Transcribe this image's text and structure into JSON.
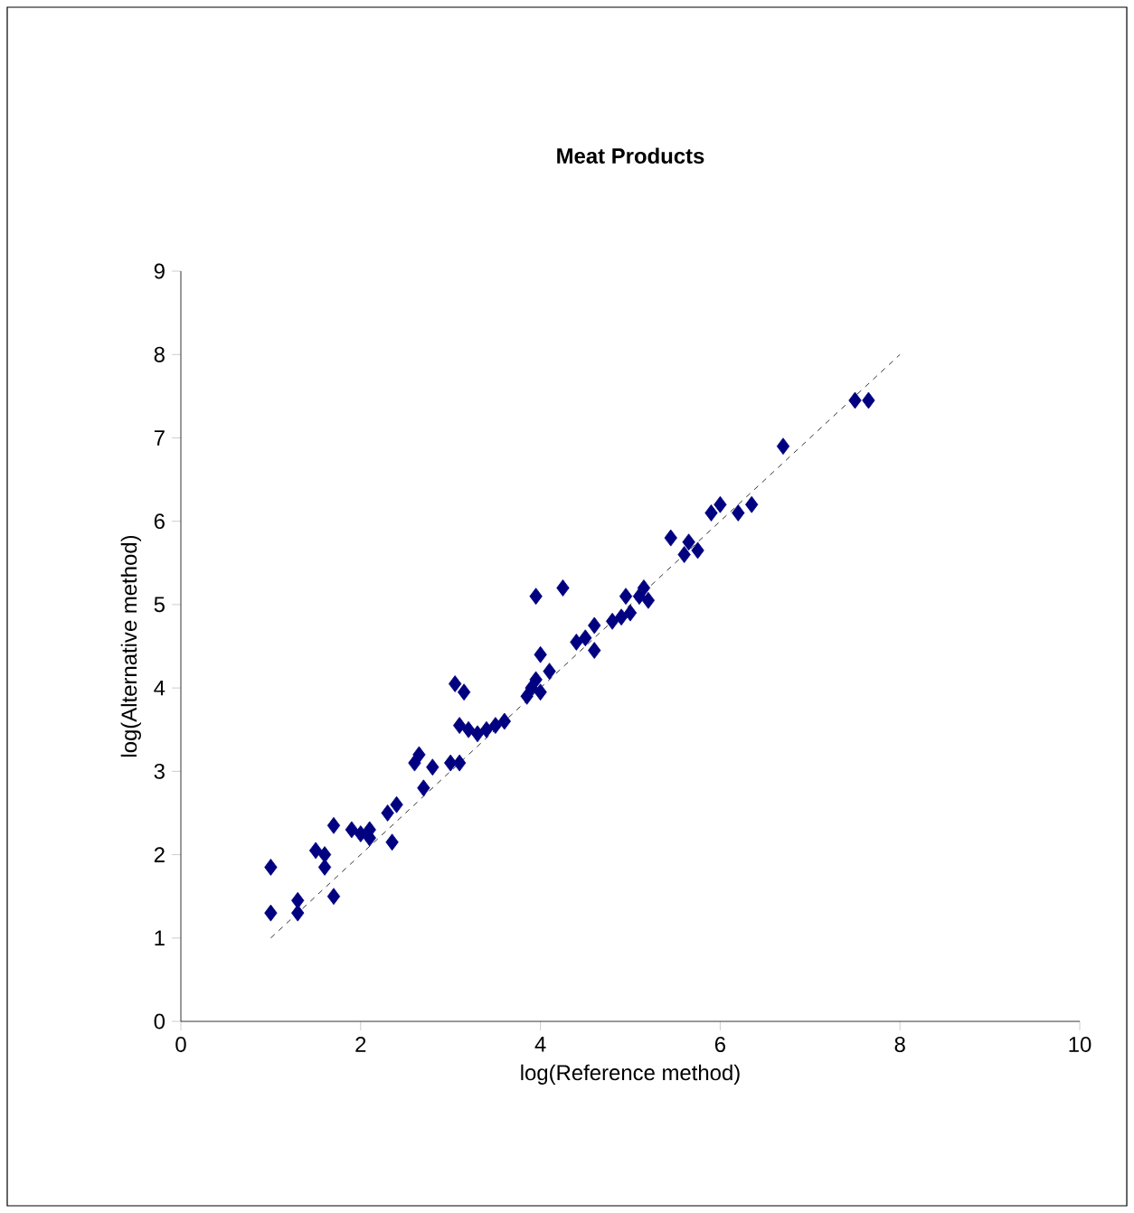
{
  "chart_data": {
    "type": "scatter",
    "title": "Meat Products",
    "xlabel": "log(Reference method)",
    "ylabel": "log(Alternative method)",
    "xlim": [
      0,
      10
    ],
    "ylim": [
      0,
      9
    ],
    "xticks": [
      0,
      2,
      4,
      6,
      8,
      10
    ],
    "yticks": [
      0,
      1,
      2,
      3,
      4,
      5,
      6,
      7,
      8,
      9
    ],
    "grid": false,
    "series": [
      {
        "color": "#000080",
        "marker": "diamond",
        "x": [
          1.0,
          1.0,
          1.3,
          1.3,
          1.5,
          1.6,
          1.6,
          1.7,
          1.7,
          1.9,
          2.0,
          2.1,
          2.1,
          2.3,
          2.4,
          2.35,
          2.6,
          2.65,
          2.7,
          2.8,
          3.0,
          3.05,
          3.1,
          3.15,
          3.1,
          3.2,
          3.3,
          3.4,
          3.5,
          3.6,
          3.85,
          3.9,
          3.95,
          4.0,
          4.0,
          4.1,
          3.95,
          4.25,
          4.4,
          4.5,
          4.6,
          4.6,
          4.8,
          4.9,
          4.95,
          5.0,
          5.1,
          5.15,
          5.2,
          5.45,
          5.6,
          5.65,
          5.75,
          5.9,
          6.0,
          6.2,
          6.35,
          6.7,
          7.5,
          7.65
        ],
        "values": [
          1.3,
          1.85,
          1.45,
          1.3,
          2.05,
          1.85,
          2.0,
          1.5,
          2.35,
          2.3,
          2.25,
          2.3,
          2.2,
          2.5,
          2.6,
          2.15,
          3.1,
          3.2,
          2.8,
          3.05,
          3.1,
          4.05,
          3.55,
          3.95,
          3.1,
          3.5,
          3.45,
          3.5,
          3.55,
          3.6,
          3.9,
          4.0,
          4.1,
          4.4,
          3.95,
          4.2,
          5.1,
          5.2,
          4.55,
          4.6,
          4.45,
          4.75,
          4.8,
          4.85,
          5.1,
          4.9,
          5.1,
          5.2,
          5.05,
          5.8,
          5.6,
          5.75,
          5.65,
          6.1,
          6.2,
          6.1,
          6.2,
          6.9,
          7.45,
          7.45
        ]
      },
      {
        "type": "line",
        "color": "#000000",
        "line_style": "dashed",
        "marker": "none",
        "x": [
          1,
          8
        ],
        "values": [
          1,
          8
        ]
      }
    ]
  }
}
